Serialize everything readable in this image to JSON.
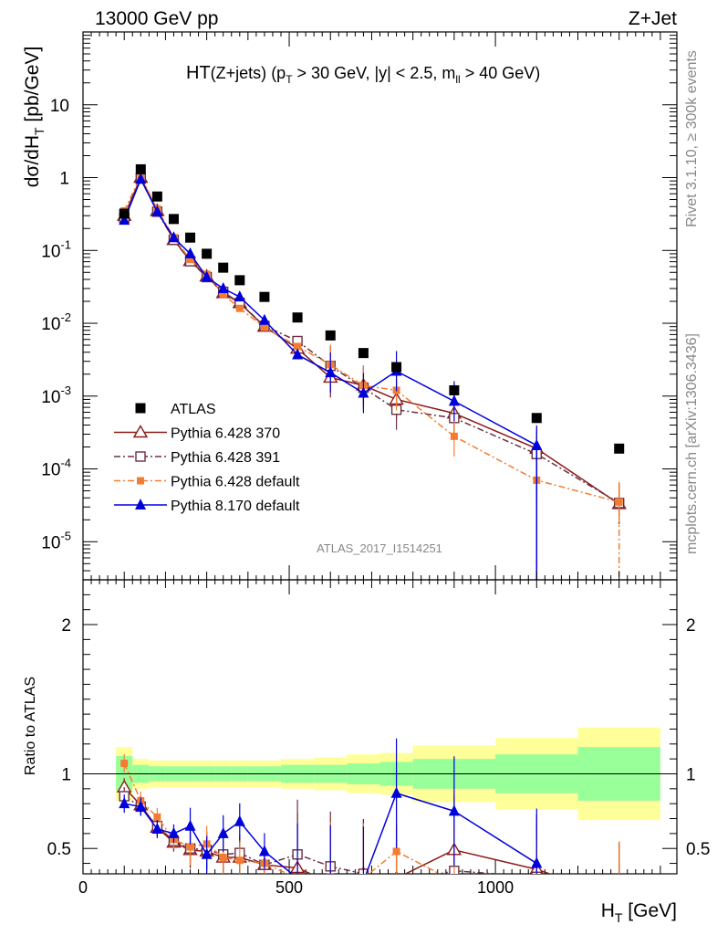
{
  "header": {
    "left": "13000 GeV pp",
    "right": "Z+Jet"
  },
  "side_text": {
    "rivet": "Rivet 3.1.10, ≥ 300k events",
    "mcplots": "mcplots.cern.ch [arXiv:1306.3436]"
  },
  "analysis_id": "ATLAS_2017_I1514251",
  "chart_data": {
    "type": "scatter",
    "title_parts": {
      "main": "HT",
      "sub_z": "(Z+jets)",
      "open": "(p",
      "sub_t": "T",
      "cut_pt": " > 30 GeV, |y| < 2.5, m",
      "sub_ll": "ll",
      "cut_m": " > 40 GeV)"
    },
    "xlabel_parts": {
      "main": "H",
      "sub": "T",
      "unit": " [GeV]"
    },
    "ylabel_parts": {
      "pre": "dσ/dH",
      "sub": "T",
      "unit": " [pb/GeV]"
    },
    "ratio_ylabel": "Ratio to ATLAS",
    "xlim": [
      0,
      1440
    ],
    "ylim": [
      3e-06,
      100
    ],
    "ratio_ylim": [
      0.33,
      2.3
    ],
    "x_ticks": [
      "0",
      "500",
      "1000"
    ],
    "y_ticks": [
      {
        "base": "10",
        "exp": "-5",
        "v": 1e-05
      },
      {
        "base": "10",
        "exp": "-4",
        "v": 0.0001
      },
      {
        "base": "10",
        "exp": "-3",
        "v": 0.001
      },
      {
        "base": "10",
        "exp": "-2",
        "v": 0.01
      },
      {
        "base": "10",
        "exp": "-1",
        "v": 0.1
      },
      {
        "base": "1",
        "exp": "",
        "v": 1
      },
      {
        "base": "10",
        "exp": "",
        "v": 10
      }
    ],
    "ratio_ticks": [
      "0.5",
      "1",
      "2"
    ],
    "bin_edges": [
      80,
      120,
      160,
      200,
      240,
      280,
      320,
      360,
      400,
      480,
      560,
      640,
      720,
      800,
      1000,
      1200,
      1400
    ],
    "band_inner": [
      0.12,
      0.06,
      0.05,
      0.05,
      0.05,
      0.05,
      0.05,
      0.05,
      0.05,
      0.06,
      0.06,
      0.07,
      0.08,
      0.1,
      0.13,
      0.18
    ],
    "band_outer": [
      0.18,
      0.1,
      0.09,
      0.09,
      0.09,
      0.09,
      0.09,
      0.09,
      0.09,
      0.1,
      0.11,
      0.13,
      0.14,
      0.19,
      0.24,
      0.31
    ],
    "series": [
      {
        "name": "ATLAS",
        "color": "#000000",
        "marker": "square",
        "x": [
          100,
          140,
          180,
          220,
          260,
          300,
          340,
          380,
          440,
          520,
          600,
          680,
          760,
          900,
          1100,
          1300
        ],
        "y": [
          0.32,
          1.3,
          0.55,
          0.27,
          0.15,
          0.09,
          0.058,
          0.039,
          0.023,
          0.012,
          0.0068,
          0.0039,
          0.0025,
          0.0012,
          0.0005,
          0.00019
        ]
      },
      {
        "name": "Pythia 6.428 370",
        "color": "#8b1a1a",
        "marker": "open-triangle",
        "dash": "",
        "x": [
          100,
          140,
          180,
          220,
          260,
          300,
          340,
          380,
          440,
          520,
          600,
          680,
          760,
          900,
          1100,
          1300
        ],
        "y": [
          0.3,
          1.0,
          0.35,
          0.14,
          0.072,
          0.044,
          0.026,
          0.019,
          0.009,
          0.0045,
          0.0018,
          0.0014,
          0.0009,
          0.00058,
          0.00019,
          3.3e-05
        ],
        "ratio": [
          0.91,
          0.79,
          0.64,
          0.54,
          0.49,
          0.48,
          0.44,
          0.44,
          0.39,
          0.37,
          0.27,
          0.33,
          0.3,
          0.49,
          0.36,
          0.17
        ]
      },
      {
        "name": "Pythia 6.428 391",
        "color": "#6b3040",
        "marker": "open-square",
        "dash": "7,3,2,3",
        "x": [
          100,
          140,
          180,
          220,
          260,
          300,
          340,
          380,
          440,
          520,
          600,
          680,
          760,
          900,
          1100,
          1300
        ],
        "y": [
          0.28,
          0.98,
          0.34,
          0.14,
          0.071,
          0.043,
          0.027,
          0.019,
          0.0092,
          0.0057,
          0.0026,
          0.0013,
          0.00065,
          0.0005,
          0.00016,
          3.4e-05
        ],
        "ratio": [
          0.85,
          0.78,
          0.65,
          0.55,
          0.5,
          0.49,
          0.46,
          0.47,
          0.39,
          0.46,
          0.38,
          0.33,
          0.27,
          0.35,
          0.31,
          0.18
        ]
      },
      {
        "name": "Pythia 6.428 default",
        "color": "#f47c30",
        "marker": "filled-square",
        "dash": "7,3,2,3",
        "x": [
          100,
          140,
          180,
          220,
          260,
          300,
          340,
          380,
          440,
          520,
          600,
          680,
          760,
          900,
          1100,
          1300
        ],
        "y": [
          0.35,
          1.05,
          0.37,
          0.15,
          0.075,
          0.047,
          0.025,
          0.016,
          0.0088,
          0.0048,
          0.0027,
          0.0014,
          0.0012,
          0.00028,
          7e-05,
          3.5e-05
        ],
        "ratio": [
          1.07,
          0.82,
          0.71,
          0.56,
          0.51,
          0.53,
          0.44,
          0.42,
          0.4,
          0.3,
          0.31,
          0.3,
          0.48,
          0.28,
          0.2,
          0.18
        ]
      },
      {
        "name": "Pythia 8.170 default",
        "color": "#0000dd",
        "marker": "filled-triangle",
        "dash": "",
        "x": [
          100,
          140,
          180,
          220,
          260,
          300,
          340,
          380,
          440,
          520,
          600,
          680,
          760,
          900,
          1100
        ],
        "y": [
          0.26,
          0.95,
          0.34,
          0.15,
          0.09,
          0.043,
          0.03,
          0.023,
          0.011,
          0.0037,
          0.0021,
          0.0011,
          0.0022,
          0.00085,
          0.00021
        ],
        "ratio": [
          0.8,
          0.78,
          0.63,
          0.6,
          0.65,
          0.46,
          0.6,
          0.68,
          0.48,
          0.3,
          0.29,
          0.28,
          0.87,
          0.75,
          0.4
        ]
      }
    ]
  }
}
